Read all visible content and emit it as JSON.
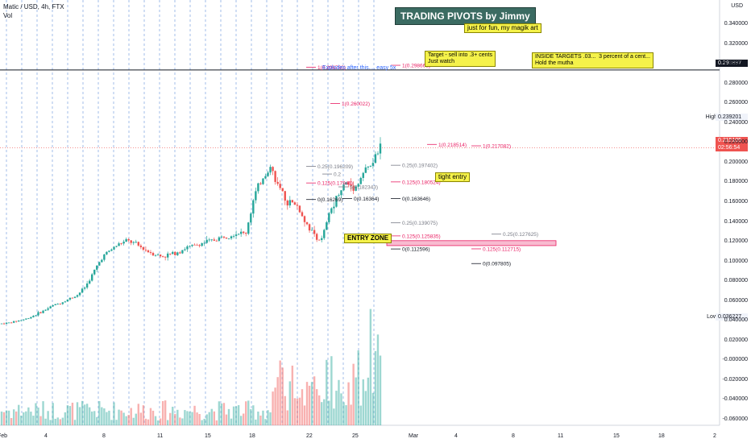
{
  "header": {
    "symbol_line": "Matic / USD, 4h, FTX",
    "vol_label": "Vol",
    "currency": "USD"
  },
  "banner": {
    "title": "TRADING PIVOTS by Jimmy",
    "subtitle": "just for fun, my magik art"
  },
  "notes": [
    {
      "id": "target",
      "text": "Target - sell into .3+ cents\nJust watch"
    },
    {
      "id": "inside",
      "text": "INSIDE TARGETS .03...  3 percent of a cent...\nHold the mutha"
    },
    {
      "id": "tight",
      "text": "tight entry"
    },
    {
      "id": "entry",
      "text": "ENTRY ZONE"
    }
  ],
  "annotation_blue": "Explodes after this.... easy 5x",
  "price_tags": {
    "level_line": "0.293897",
    "last": "0.215105",
    "countdown": "02:56:54",
    "high_label": "High",
    "high": "0.239201",
    "low_label": "Low",
    "low": "0.036227"
  },
  "colors": {
    "up": "#26a69a",
    "down": "#ef5350",
    "pivot_red": "#e91e63",
    "blue": "#2962ff",
    "grid": "#5b8bd6"
  },
  "y_axis_ticks": [
    "0.340000",
    "0.320000",
    "0.300000",
    "0.280000",
    "0.260000",
    "0.240000",
    "0.220000",
    "0.200000",
    "0.180000",
    "0.160000",
    "0.140000",
    "0.120000",
    "0.100000",
    "0.080000",
    "0.060000",
    "0.040000",
    "0.020000",
    "-0.000000",
    "-0.020000",
    "-0.040000",
    "-0.060000"
  ],
  "x_axis_ticks": [
    "Feb",
    "4",
    "8",
    "11",
    "15",
    "18",
    "22",
    "25",
    "Mar",
    "4",
    "8",
    "11",
    "15",
    "18",
    "2"
  ],
  "chart_data": {
    "type": "candlestick",
    "ylim": [
      -0.066,
      0.355
    ],
    "y_major_ticks": [
      0.34,
      0.32,
      0.3,
      0.28,
      0.26,
      0.24,
      0.22,
      0.2,
      0.18,
      0.16,
      0.14,
      0.12,
      0.1,
      0.08,
      0.06,
      0.04,
      0.02,
      0,
      -0.02,
      -0.04,
      -0.06
    ],
    "price_path": [
      0.037,
      0.038,
      0.04,
      0.042,
      0.046,
      0.05,
      0.055,
      0.058,
      0.062,
      0.066,
      0.075,
      0.09,
      0.105,
      0.112,
      0.118,
      0.121,
      0.117,
      0.112,
      0.108,
      0.105,
      0.107,
      0.11,
      0.114,
      0.116,
      0.119,
      0.121,
      0.124,
      0.127,
      0.129,
      0.128,
      0.165,
      0.185,
      0.196,
      0.172,
      0.16,
      0.158,
      0.142,
      0.128,
      0.121,
      0.15,
      0.17,
      0.18,
      0.174,
      0.19,
      0.199,
      0.215
    ],
    "pivot_labels": [
      {
        "text": "1(0.296760)",
        "value": 0.29676,
        "color": "red"
      },
      {
        "text": "1(0.298668)",
        "value": 0.298668,
        "color": "red"
      },
      {
        "text": "1(0.260022)",
        "value": 0.260022,
        "color": "red"
      },
      {
        "text": "1(0.218514)",
        "value": 0.218514,
        "color": "red"
      },
      {
        "text": "1(0.217082)",
        "value": 0.217082,
        "color": "red"
      },
      {
        "text": "0.25(0.196209)",
        "value": 0.196209,
        "color": "grey"
      },
      {
        "text": "0.25(0.197402)",
        "value": 0.197402,
        "color": "grey"
      },
      {
        "text": "0.2",
        "value": 0.1885,
        "color": "grey"
      },
      {
        "text": "0.125(0.17945)",
        "value": 0.17945,
        "color": "red"
      },
      {
        "text": "5(0.182343)",
        "value": 0.1755,
        "color": "grey"
      },
      {
        "text": "0.125(0.180524)",
        "value": 0.180524,
        "color": "red"
      },
      {
        "text": "0(0.16269)",
        "value": 0.16269,
        "color": "black"
      },
      {
        "text": "0(0.16364)",
        "value": 0.16364,
        "color": "black"
      },
      {
        "text": "0(0.163646)",
        "value": 0.163646,
        "color": "black"
      },
      {
        "text": "0.25(0.139075)",
        "value": 0.139075,
        "color": "grey"
      },
      {
        "text": "0.25(0.127625)",
        "value": 0.127625,
        "color": "grey"
      },
      {
        "text": "0.125(0.125835)",
        "value": 0.125835,
        "color": "red"
      },
      {
        "text": "0(0.112596)",
        "value": 0.112596,
        "color": "black"
      },
      {
        "text": "0.125(0.112715)",
        "value": 0.112715,
        "color": "red"
      },
      {
        "text": "0(0.097805)",
        "value": 0.097805,
        "color": "black"
      }
    ]
  }
}
